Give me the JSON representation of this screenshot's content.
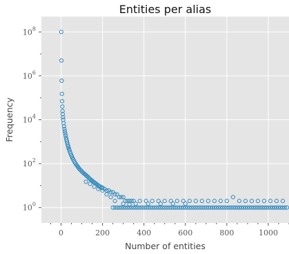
{
  "chart_data": {
    "type": "scatter",
    "title": "Entities per alias",
    "xlabel": "Number of entities",
    "ylabel": "Frequency",
    "xlim": [
      -95,
      1100
    ],
    "ylim_log10": [
      -0.7,
      8.7
    ],
    "y_scale": "log",
    "grid": true,
    "marker_color": "#348abd",
    "plot_background": "#e5e5e5",
    "x_ticks": [
      0,
      200,
      400,
      600,
      800,
      1000
    ],
    "x_tick_labels": [
      "0",
      "200",
      "400",
      "600",
      "800",
      "1000"
    ],
    "y_ticks_log10": [
      0,
      2,
      4,
      6,
      8
    ],
    "y_tick_labels": [
      {
        "base": "10",
        "exp": "0"
      },
      {
        "base": "10",
        "exp": "2"
      },
      {
        "base": "10",
        "exp": "4"
      },
      {
        "base": "10",
        "exp": "6"
      },
      {
        "base": "10",
        "exp": "8"
      }
    ],
    "series": [
      {
        "points": [
          [
            1,
            100000000
          ],
          [
            2,
            5000000
          ],
          [
            3,
            600000
          ],
          [
            4,
            150000
          ],
          [
            5,
            70000
          ],
          [
            6,
            40000
          ],
          [
            7,
            25000
          ],
          [
            8,
            18000
          ],
          [
            9,
            13000
          ],
          [
            10,
            10000
          ],
          [
            12,
            7000
          ],
          [
            14,
            5000
          ],
          [
            16,
            3800
          ],
          [
            18,
            3000
          ],
          [
            20,
            2400
          ],
          [
            22,
            1900
          ],
          [
            24,
            1500
          ],
          [
            26,
            1250
          ],
          [
            28,
            1050
          ],
          [
            30,
            880
          ],
          [
            32,
            740
          ],
          [
            34,
            630
          ],
          [
            36,
            540
          ],
          [
            38,
            470
          ],
          [
            40,
            410
          ],
          [
            43,
            340
          ],
          [
            46,
            290
          ],
          [
            49,
            245
          ],
          [
            52,
            210
          ],
          [
            55,
            180
          ],
          [
            58,
            160
          ],
          [
            62,
            135
          ],
          [
            66,
            115
          ],
          [
            70,
            100
          ],
          [
            74,
            88
          ],
          [
            78,
            78
          ],
          [
            82,
            70
          ],
          [
            86,
            62
          ],
          [
            90,
            55
          ],
          [
            95,
            50
          ],
          [
            100,
            44
          ],
          [
            105,
            40
          ],
          [
            110,
            36
          ],
          [
            115,
            33
          ],
          [
            120,
            30
          ],
          [
            125,
            27
          ],
          [
            130,
            25
          ],
          [
            135,
            22
          ],
          [
            140,
            20
          ],
          [
            145,
            18
          ],
          [
            150,
            17
          ],
          [
            155,
            15
          ],
          [
            160,
            14
          ],
          [
            165,
            13
          ],
          [
            170,
            12
          ],
          [
            175,
            11
          ],
          [
            180,
            10
          ],
          [
            185,
            9
          ],
          [
            190,
            9
          ],
          [
            195,
            8
          ],
          [
            200,
            8
          ],
          [
            210,
            7
          ],
          [
            220,
            6
          ],
          [
            230,
            6
          ],
          [
            240,
            5
          ],
          [
            250,
            5
          ],
          [
            260,
            4
          ],
          [
            270,
            4
          ],
          [
            280,
            3
          ],
          [
            290,
            3
          ],
          [
            300,
            3
          ],
          [
            310,
            2
          ],
          [
            320,
            2
          ],
          [
            330,
            2
          ],
          [
            340,
            2
          ],
          [
            120,
            15
          ],
          [
            140,
            12
          ],
          [
            160,
            9
          ],
          [
            180,
            7
          ],
          [
            200,
            6
          ],
          [
            220,
            4
          ],
          [
            240,
            3
          ],
          [
            260,
            2
          ],
          [
            300,
            1.5
          ],
          [
            330,
            1.4
          ],
          [
            350,
            2
          ],
          [
            380,
            2
          ],
          [
            410,
            2
          ],
          [
            440,
            2
          ],
          [
            470,
            2
          ],
          [
            500,
            2
          ],
          [
            530,
            2
          ],
          [
            560,
            2
          ],
          [
            590,
            2
          ],
          [
            620,
            2
          ],
          [
            650,
            2
          ],
          [
            680,
            2
          ],
          [
            710,
            2
          ],
          [
            740,
            2
          ],
          [
            770,
            2
          ],
          [
            800,
            2
          ],
          [
            830,
            3
          ],
          [
            860,
            2
          ],
          [
            890,
            2
          ],
          [
            920,
            2
          ],
          [
            950,
            2
          ],
          [
            980,
            2
          ],
          [
            1010,
            2
          ],
          [
            1040,
            2
          ],
          [
            1070,
            2
          ],
          [
            360,
            1.5
          ],
          [
            420,
            1.5
          ],
          [
            480,
            1.5
          ],
          [
            540,
            1.5
          ],
          [
            600,
            1.5
          ],
          [
            250,
            1
          ],
          [
            260,
            1
          ],
          [
            270,
            1
          ],
          [
            280,
            1
          ],
          [
            290,
            1
          ],
          [
            300,
            1
          ],
          [
            310,
            1
          ],
          [
            320,
            1
          ],
          [
            330,
            1
          ],
          [
            340,
            1
          ],
          [
            350,
            1
          ],
          [
            360,
            1
          ],
          [
            370,
            1
          ],
          [
            380,
            1
          ],
          [
            390,
            1
          ],
          [
            400,
            1
          ],
          [
            410,
            1
          ],
          [
            420,
            1
          ],
          [
            430,
            1
          ],
          [
            440,
            1
          ],
          [
            450,
            1
          ],
          [
            460,
            1
          ],
          [
            470,
            1
          ],
          [
            480,
            1
          ],
          [
            490,
            1
          ],
          [
            500,
            1
          ],
          [
            510,
            1
          ],
          [
            520,
            1
          ],
          [
            530,
            1
          ],
          [
            540,
            1
          ],
          [
            550,
            1
          ],
          [
            560,
            1
          ],
          [
            570,
            1
          ],
          [
            580,
            1
          ],
          [
            590,
            1
          ],
          [
            600,
            1
          ],
          [
            610,
            1
          ],
          [
            620,
            1
          ],
          [
            630,
            1
          ],
          [
            640,
            1
          ],
          [
            650,
            1
          ],
          [
            660,
            1
          ],
          [
            670,
            1
          ],
          [
            680,
            1
          ],
          [
            690,
            1
          ],
          [
            700,
            1
          ],
          [
            710,
            1
          ],
          [
            720,
            1
          ],
          [
            730,
            1
          ],
          [
            740,
            1
          ],
          [
            750,
            1
          ],
          [
            760,
            1
          ],
          [
            770,
            1
          ],
          [
            780,
            1
          ],
          [
            790,
            1
          ],
          [
            800,
            1
          ],
          [
            810,
            1
          ],
          [
            820,
            1
          ],
          [
            830,
            1
          ],
          [
            840,
            1
          ],
          [
            850,
            1
          ],
          [
            860,
            1
          ],
          [
            870,
            1
          ],
          [
            880,
            1
          ],
          [
            890,
            1
          ],
          [
            900,
            1
          ],
          [
            910,
            1
          ],
          [
            920,
            1
          ],
          [
            930,
            1
          ],
          [
            940,
            1
          ],
          [
            950,
            1
          ],
          [
            960,
            1
          ],
          [
            970,
            1
          ],
          [
            980,
            1
          ],
          [
            990,
            1
          ],
          [
            1000,
            1
          ],
          [
            1010,
            1
          ],
          [
            1020,
            1
          ],
          [
            1030,
            1
          ],
          [
            1040,
            1
          ],
          [
            1050,
            1
          ],
          [
            1060,
            1
          ],
          [
            1070,
            1
          ],
          [
            1080,
            1
          ],
          [
            1090,
            1
          ]
        ]
      }
    ]
  }
}
